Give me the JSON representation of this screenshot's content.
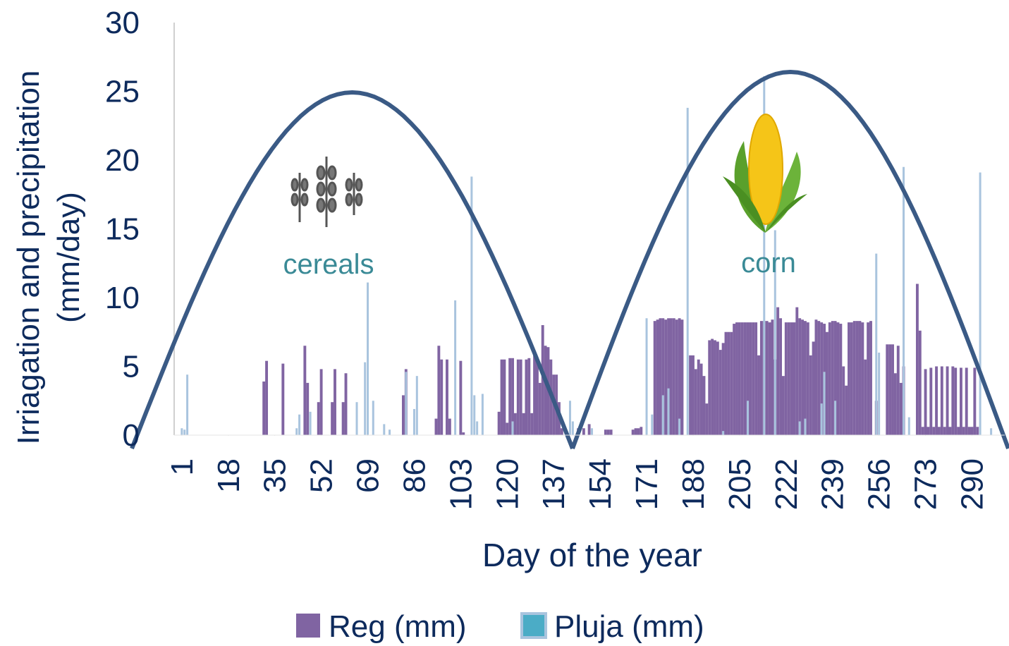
{
  "chart_data": {
    "type": "bar",
    "x_label": "Day of the year",
    "y_label": [
      "Irriagation and precipitation",
      "(mm/day)"
    ],
    "annotations": [
      "cereals",
      "corn"
    ],
    "xlim": [
      -1.8,
      302
    ],
    "xticks": [
      1,
      18,
      35,
      52,
      69,
      86,
      103,
      120,
      137,
      154,
      171,
      188,
      205,
      222,
      239,
      256,
      273,
      290
    ],
    "ylim": [
      0,
      30
    ],
    "yticks": [
      0,
      5,
      10,
      15,
      20,
      25,
      30
    ],
    "legend": "bottom",
    "series": [
      {
        "name": "Reg (mm)",
        "color": "#8064a2",
        "x": [
          31,
          32,
          38,
          46,
          47,
          51,
          52,
          56,
          57,
          60,
          61,
          82,
          83,
          94,
          95,
          96,
          98,
          99,
          103,
          104,
          117,
          118,
          119,
          120,
          121,
          122,
          123,
          124,
          125,
          126,
          127,
          128,
          129,
          130,
          131,
          132,
          133,
          134,
          135,
          136,
          137,
          138,
          139,
          140,
          146,
          148,
          150,
          156,
          157,
          158,
          166,
          167,
          168,
          169,
          174,
          175,
          176,
          177,
          178,
          179,
          180,
          181,
          182,
          183,
          184,
          187,
          188,
          189,
          190,
          191,
          192,
          193,
          194,
          195,
          196,
          197,
          198,
          199,
          200,
          201,
          202,
          203,
          204,
          205,
          206,
          207,
          208,
          209,
          210,
          211,
          212,
          213,
          214,
          215,
          216,
          217,
          218,
          219,
          220,
          221,
          222,
          223,
          224,
          225,
          226,
          227,
          228,
          229,
          230,
          231,
          232,
          233,
          234,
          235,
          236,
          237,
          238,
          239,
          240,
          241,
          242,
          243,
          244,
          245,
          246,
          247,
          248,
          249,
          250,
          251,
          252,
          253,
          255,
          259,
          260,
          261,
          262,
          263,
          264,
          265,
          270,
          271,
          272,
          273,
          274,
          275,
          276,
          277,
          278,
          279,
          280,
          281,
          282,
          283,
          284,
          285,
          286,
          287,
          288,
          289,
          290,
          291,
          292
        ],
        "values": [
          3.9,
          5.4,
          5.2,
          6.5,
          3.8,
          2.4,
          4.8,
          2.4,
          4.8,
          2.4,
          4.5,
          2.9,
          4.8,
          1.2,
          6.5,
          5.5,
          5.5,
          1.2,
          5.4,
          0.2,
          1.7,
          5.5,
          5.5,
          0.9,
          5.6,
          5.6,
          1.6,
          5.5,
          5.5,
          1.6,
          5.5,
          5.6,
          1.6,
          5.8,
          5.6,
          3.8,
          8,
          6.5,
          6.4,
          5.5,
          4.4,
          4.4,
          2.4,
          0.5,
          0.5,
          0.5,
          0.8,
          0.4,
          0.4,
          0.4,
          0.4,
          0.5,
          0.5,
          0.6,
          8.3,
          8.4,
          8.5,
          8.5,
          8.4,
          8.5,
          8.5,
          8.5,
          8.4,
          8.5,
          8.4,
          5.8,
          5.8,
          4.8,
          5.5,
          5.2,
          4.3,
          2.3,
          6.9,
          7,
          6.9,
          6.8,
          6.2,
          6.7,
          7.5,
          7.5,
          7.5,
          8.1,
          8.2,
          8.2,
          8.2,
          8.2,
          8.2,
          8.2,
          8.2,
          8.2,
          5.8,
          8.3,
          8.3,
          8.3,
          8.2,
          8.4,
          5.5,
          9.3,
          8.5,
          4.3,
          8.2,
          8.2,
          8.2,
          8.2,
          9.3,
          8.5,
          8.4,
          8.3,
          8.2,
          5.8,
          6.8,
          8.4,
          8.3,
          8.2,
          8.1,
          7.5,
          8.2,
          8.3,
          8.3,
          8.2,
          8.1,
          5,
          3.6,
          8.2,
          8.2,
          8.3,
          8.3,
          8.3,
          8.2,
          5.5,
          8.2,
          8.3,
          2.5,
          6.6,
          6.6,
          6.6,
          4.5,
          6.5,
          3.8,
          5,
          11,
          7.6,
          0.6,
          4.8,
          0.6,
          4.9,
          0.6,
          5,
          0.6,
          5,
          0.6,
          5,
          0.6,
          5,
          4.9,
          0.6,
          4.9,
          0.6,
          4.9,
          0.6,
          0.6,
          4.9,
          0.6
        ]
      },
      {
        "name": "Pluja (mm)",
        "color": "#a9c4de",
        "x": [
          1,
          2,
          3,
          43,
          44,
          48,
          65,
          68,
          69,
          71,
          75,
          77,
          83,
          86,
          87,
          101,
          107,
          108,
          109,
          111,
          122,
          143,
          144,
          151,
          171,
          173,
          177,
          179,
          183,
          186,
          199,
          208,
          214,
          218,
          227,
          229,
          235,
          236,
          240,
          255,
          256,
          265,
          267,
          293,
          297
        ],
        "values": [
          0.5,
          0.4,
          4.4,
          0.5,
          1.5,
          1.7,
          2.4,
          5.3,
          11.1,
          2.5,
          0.8,
          0.4,
          4.6,
          1.9,
          4.3,
          9.8,
          18.8,
          2.9,
          1,
          3,
          1,
          2.5,
          1,
          0.5,
          8.5,
          1.5,
          2.9,
          3.4,
          1.2,
          23.8,
          0.3,
          2.5,
          26.1,
          14.9,
          1,
          1.2,
          2.3,
          4.6,
          2.5,
          13.2,
          6,
          19.5,
          1.3,
          19.1,
          0.5
        ]
      }
    ]
  }
}
